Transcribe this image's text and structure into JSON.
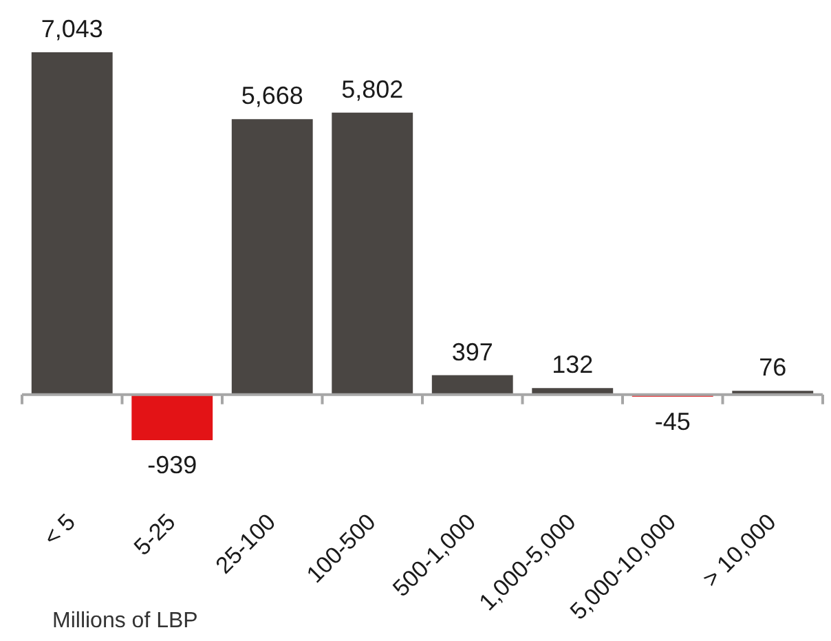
{
  "chart_data": {
    "type": "bar",
    "xlabel": "Millions of LBP",
    "categories": [
      "< 5",
      "5-25",
      "25-100",
      "100-500",
      "500-1,000",
      "1,000-5,000",
      "5,000-10,000",
      "> 10,000"
    ],
    "values": [
      7043,
      -939,
      5668,
      5802,
      397,
      132,
      -45,
      76
    ],
    "value_labels": [
      "7,043",
      "-939",
      "5,668",
      "5,802",
      "397",
      "132",
      "-45",
      "76"
    ],
    "colors": [
      "#4a4643",
      "#e31316",
      "#4a4643",
      "#4a4643",
      "#4a4643",
      "#4a4643",
      "#e31316",
      "#4a4643"
    ]
  }
}
